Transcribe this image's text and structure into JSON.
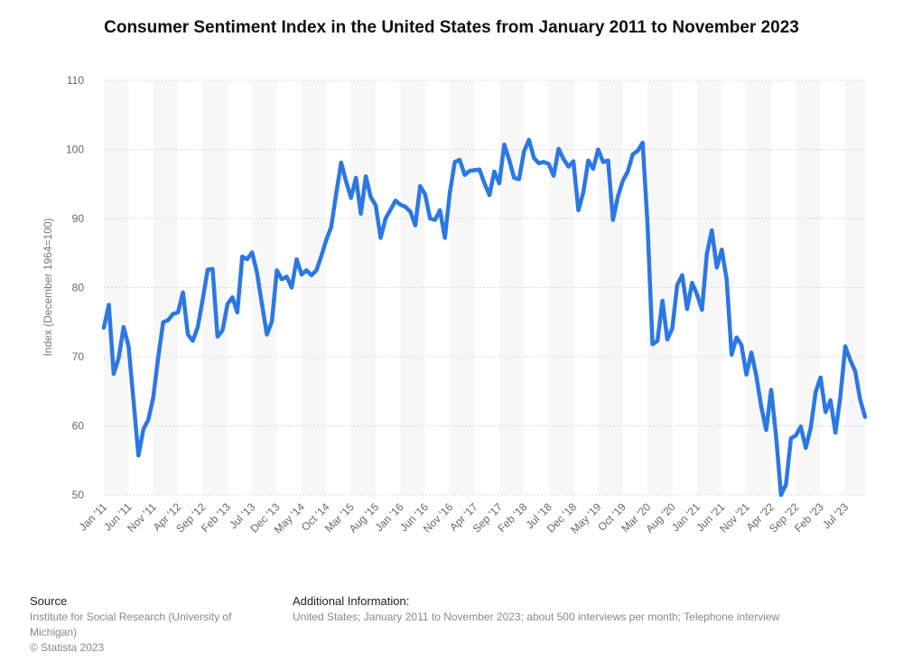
{
  "title": "Consumer Sentiment Index in the United States from January 2011 to November 2023",
  "chart_data": {
    "type": "line",
    "title": "Consumer Sentiment Index in the United States from January 2011 to November 2023",
    "ylabel": "Index (December 1964=100)",
    "xlabel": "",
    "ylim": [
      50,
      110
    ],
    "yticks": [
      50,
      60,
      70,
      80,
      90,
      100,
      110
    ],
    "grid": true,
    "line_color": "#2b78e4",
    "x_tick_labels": [
      "Jan '11",
      "Jun '11",
      "Nov '11",
      "Apr '12",
      "Sep '12",
      "Feb '13",
      "Jul '13",
      "Dec '13",
      "May '14",
      "Oct '14",
      "Mar '15",
      "Aug '15",
      "Jan '16",
      "Jun '16",
      "Nov '16",
      "Apr '17",
      "Sep '17",
      "Feb '18",
      "Jul '18",
      "Dec '18",
      "May '19",
      "Oct '19",
      "Mar '20",
      "Aug '20",
      "Jan '21",
      "Jun '21",
      "Nov '21",
      "Apr '22",
      "Sep '22",
      "Feb '23",
      "Jul '23"
    ],
    "series": [
      {
        "values": [
          74.2,
          77.5,
          67.5,
          69.8,
          74.3,
          71.5,
          63.7,
          55.7,
          59.5,
          60.9,
          64.1,
          69.9,
          75.0,
          75.3,
          76.2,
          76.4,
          79.3,
          73.2,
          72.3,
          74.3,
          78.3,
          82.6,
          82.7,
          72.9,
          73.8,
          77.6,
          78.6,
          76.4,
          84.5,
          84.1,
          85.1,
          82.1,
          77.5,
          73.2,
          75.1,
          82.5,
          81.2,
          81.6,
          80.0,
          84.1,
          81.9,
          82.5,
          81.8,
          82.5,
          84.6,
          86.9,
          88.8,
          93.6,
          98.1,
          95.4,
          93.0,
          95.9,
          90.7,
          96.1,
          93.1,
          91.9,
          87.2,
          90.0,
          91.3,
          92.6,
          92.0,
          91.7,
          91.0,
          89.0,
          94.7,
          93.5,
          90.0,
          89.8,
          91.2,
          87.2,
          93.8,
          98.2,
          98.5,
          96.3,
          96.9,
          97.0,
          97.1,
          95.1,
          93.4,
          96.8,
          95.1,
          100.7,
          98.5,
          95.9,
          95.7,
          99.7,
          101.4,
          98.8,
          98.0,
          98.2,
          97.9,
          96.2,
          100.1,
          98.6,
          97.5,
          98.3,
          91.2,
          93.8,
          98.4,
          97.2,
          100.0,
          98.2,
          98.4,
          89.8,
          93.2,
          95.5,
          96.8,
          99.3,
          99.8,
          101.0,
          89.1,
          71.8,
          72.3,
          78.1,
          72.5,
          74.1,
          80.4,
          81.8,
          76.9,
          80.7,
          79.0,
          76.8,
          84.9,
          88.3,
          82.9,
          85.5,
          81.2,
          70.3,
          72.8,
          71.7,
          67.4,
          70.6,
          67.2,
          62.8,
          59.4,
          65.2,
          58.4,
          50.0,
          51.5,
          58.2,
          58.6,
          59.9,
          56.8,
          59.7,
          64.9,
          67.0,
          62.0,
          63.7,
          59.0,
          64.2,
          71.5,
          69.5,
          67.9,
          63.8,
          61.3
        ]
      }
    ]
  },
  "footer": {
    "source_heading": "Source",
    "source_line1": "Institute for Social Research (University of",
    "source_line2": "Michigan)",
    "source_line3": "© Statista 2023",
    "info_heading": "Additional Information:",
    "info_text": "United States; January 2011 to November 2023; about 500 interviews per month; Telephone interview"
  }
}
